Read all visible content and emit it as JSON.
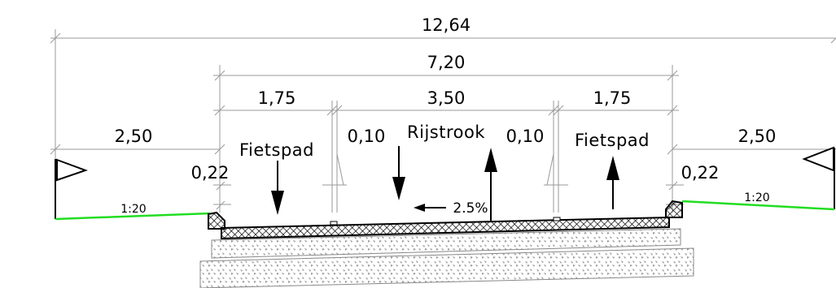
{
  "colors": {
    "dimension_line": "#9a9a9a",
    "slope_line": "#22dd22",
    "ink": "#000000",
    "gravel": "#aaaaaa"
  },
  "dimensions": {
    "overall": "12,64",
    "pavement": "7,20",
    "bike_left": "1,75",
    "lane": "3,50",
    "bike_right": "1,75",
    "verge_left": "2,50",
    "verge_right": "2,50",
    "gutter_left": "0,10",
    "gutter_right": "0,10",
    "kerb_left": "0,22",
    "kerb_right": "0,22"
  },
  "labels": {
    "bike_path_left": "Fietspad",
    "bike_path_right": "Fietspad",
    "lane": "Rijstrook",
    "crossfall": "2.5%",
    "slope_left": "1:20",
    "slope_right": "1:20"
  },
  "icons": [
    "arrow-down-icon",
    "arrow-up-icon",
    "arrow-left-icon",
    "level-marker-icon"
  ]
}
